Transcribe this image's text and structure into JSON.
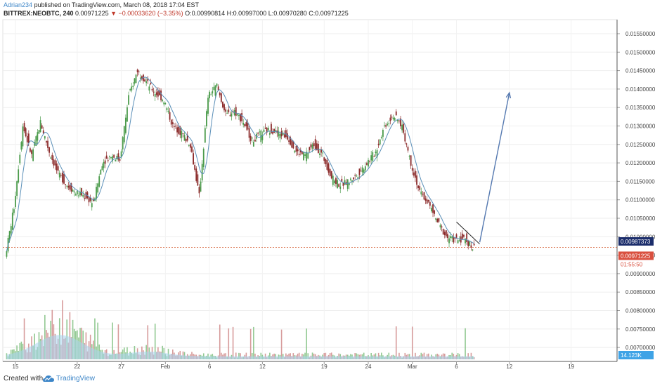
{
  "header": {
    "author": "Adrian234",
    "published": "published on TradingView.com, March 08, 2018 17:04 EST",
    "symbol": "BITTREX:NEOBTC, 240",
    "last": "0.00971225",
    "change": "▼ −0.00033620 (−3.35%)",
    "ohlc": "O:0.00990814 H:0.00997000 L:0.00970280 C:0.00971225"
  },
  "footer": {
    "created_with": "Created with",
    "brand": "TradingView"
  },
  "colors": {
    "up": "#4a9a4a",
    "down": "#8b2a2a",
    "ma": "#5a8fb8",
    "vol_area": "#a8d4ee",
    "arrow": "#5579b0",
    "price_line": "#d9704a",
    "price_label_bg": "#d9503f",
    "ref_label_bg": "#1b2d6b",
    "vol_label_bg": "#3fa3e6"
  },
  "chart_data": {
    "type": "candlestick",
    "title": "BITTREX:NEOBTC, 240",
    "y_axis": {
      "ticks": [
        "0.01550000",
        "0.01500000",
        "0.01450000",
        "0.01400000",
        "0.01350000",
        "0.01300000",
        "0.01250000",
        "0.01200000",
        "0.01150000",
        "0.01100000",
        "0.01050000",
        "0.01000000",
        "0.00950000",
        "0.00900000",
        "0.00850000",
        "0.00800000",
        "0.00750000",
        "0.00700000"
      ],
      "range": [
        0.00685,
        0.0158
      ]
    },
    "x_axis": {
      "ticks": [
        "15",
        "22",
        "27",
        "Feb",
        "6",
        "12",
        "19",
        "24",
        "Mar",
        "6",
        "12",
        "19"
      ]
    },
    "price_path": [
      [
        "Jan 14",
        0.00945
      ],
      [
        "Jan 15",
        0.0108
      ],
      [
        "Jan 16",
        0.013
      ],
      [
        "Jan 17",
        0.0122
      ],
      [
        "Jan 18",
        0.0131
      ],
      [
        "Jan 19",
        0.0123
      ],
      [
        "Jan 20",
        0.0117
      ],
      [
        "Jan 21",
        0.0114
      ],
      [
        "Jan 22",
        0.0112
      ],
      [
        "Jan 23",
        0.0111
      ],
      [
        "Jan 24",
        0.0109
      ],
      [
        "Jan 25",
        0.012
      ],
      [
        "Jan 26",
        0.0122
      ],
      [
        "Jan 27",
        0.0121
      ],
      [
        "Jan 28",
        0.0138
      ],
      [
        "Jan 29",
        0.0145
      ],
      [
        "Jan 30",
        0.0142
      ],
      [
        "Jan 31",
        0.0139
      ],
      [
        "Feb 1",
        0.0137
      ],
      [
        "Feb 2",
        0.013
      ],
      [
        "Feb 3",
        0.0128
      ],
      [
        "Feb 4",
        0.0125
      ],
      [
        "Feb 5",
        0.0111
      ],
      [
        "Feb 6",
        0.0138
      ],
      [
        "Feb 7",
        0.0141
      ],
      [
        "Feb 8",
        0.0133
      ],
      [
        "Feb 9",
        0.0134
      ],
      [
        "Feb 10",
        0.0131
      ],
      [
        "Feb 11",
        0.0126
      ],
      [
        "Feb 12",
        0.0128
      ],
      [
        "Feb 13",
        0.0129
      ],
      [
        "Feb 14",
        0.0128
      ],
      [
        "Feb 15",
        0.0127
      ],
      [
        "Feb 16",
        0.0123
      ],
      [
        "Feb 17",
        0.0122
      ],
      [
        "Feb 18",
        0.0125
      ],
      [
        "Feb 19",
        0.0122
      ],
      [
        "Feb 20",
        0.0116
      ],
      [
        "Feb 21",
        0.0114
      ],
      [
        "Feb 22",
        0.0115
      ],
      [
        "Feb 23",
        0.0117
      ],
      [
        "Feb 24",
        0.012
      ],
      [
        "Feb 25",
        0.0123
      ],
      [
        "Feb 26",
        0.013
      ],
      [
        "Feb 27",
        0.0133
      ],
      [
        "Feb 28",
        0.013
      ],
      [
        "Mar 1",
        0.012
      ],
      [
        "Mar 2",
        0.0112
      ],
      [
        "Mar 3",
        0.0109
      ],
      [
        "Mar 4",
        0.0104
      ],
      [
        "Mar 5",
        0.01
      ],
      [
        "Mar 6",
        0.0099
      ],
      [
        "Mar 7",
        0.00995
      ],
      [
        "Mar 8",
        0.00971
      ]
    ],
    "current_price": "0.00971225",
    "reference_price": "0.00987373",
    "countdown": "01:55:50",
    "volume_label": "14.123K",
    "forecast_arrow": {
      "from": [
        "Mar 8",
        0.00985
      ],
      "to": [
        "Mar 12",
        0.0139
      ]
    },
    "trendline": {
      "from": [
        "Mar 6",
        0.0104
      ],
      "to": [
        "Mar 8",
        0.0098
      ]
    }
  }
}
